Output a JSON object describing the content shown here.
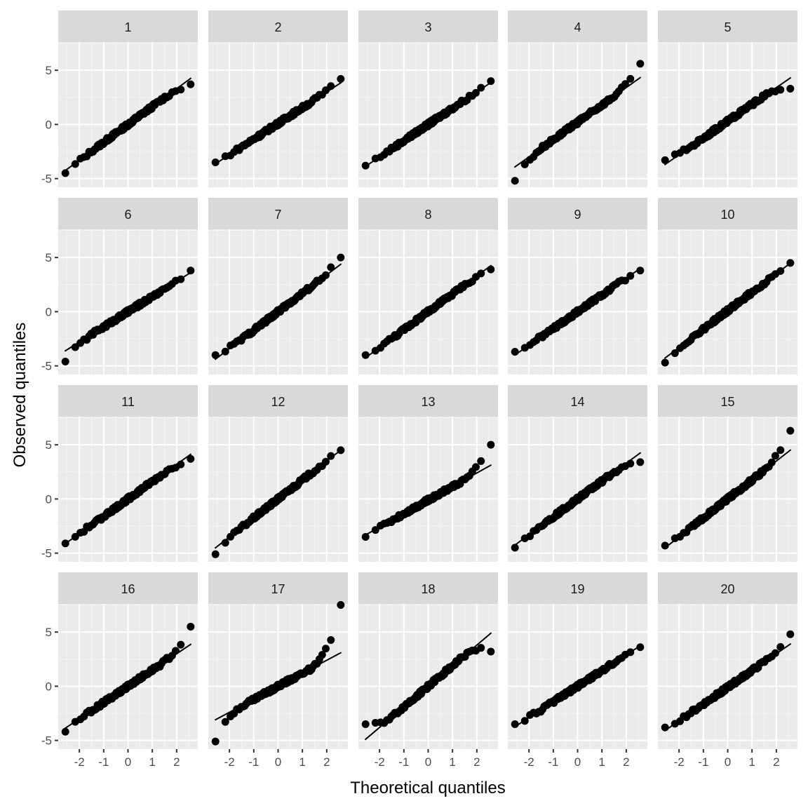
{
  "chart_data": {
    "type": "scatter",
    "subtype": "qq-plot facet grid",
    "xlabel": "Theoretical quantiles",
    "ylabel": "Observed quantiles",
    "layout": {
      "rows": 4,
      "cols": 5,
      "panel_order": "row-major"
    },
    "xlim": [
      -2.87,
      2.87
    ],
    "ylim": [
      -5.8,
      7.6
    ],
    "x_ticks": [
      -2,
      -1,
      0,
      1,
      2
    ],
    "x_tick_labels": [
      "-2",
      "-1",
      "0",
      "1",
      "2"
    ],
    "y_ticks": [
      -5,
      0,
      5
    ],
    "y_tick_labels": [
      "-5",
      "0",
      "5"
    ],
    "grid": true,
    "n_points_per_panel": 100,
    "reference_line": "qq line through quartiles",
    "panels": [
      {
        "label": "1",
        "line": {
          "slope": 1.65,
          "intercept": 0.0
        },
        "first_point": [
          -2.58,
          -4.5
        ],
        "last_point": [
          2.58,
          3.7
        ],
        "notes": "close fit, slight low upper tail"
      },
      {
        "label": "2",
        "line": {
          "slope": 1.45,
          "intercept": 0.1
        },
        "first_point": [
          -2.58,
          -3.5
        ],
        "last_point": [
          2.58,
          4.2
        ],
        "notes": "close fit"
      },
      {
        "label": "3",
        "line": {
          "slope": 1.5,
          "intercept": 0.0
        },
        "first_point": [
          -2.58,
          -3.8
        ],
        "last_point": [
          2.58,
          4.0
        ],
        "notes": "close fit"
      },
      {
        "label": "4",
        "line": {
          "slope": 1.6,
          "intercept": 0.2
        },
        "first_point": [
          -2.58,
          -5.2
        ],
        "last_point": [
          2.58,
          5.6
        ],
        "notes": "heavy tails both ends"
      },
      {
        "label": "5",
        "line": {
          "slope": 1.55,
          "intercept": 0.3
        },
        "first_point": [
          -2.58,
          -3.3
        ],
        "last_point": [
          2.58,
          3.3
        ],
        "notes": "light tails"
      },
      {
        "label": "6",
        "line": {
          "slope": 1.4,
          "intercept": 0.0
        },
        "first_point": [
          -2.58,
          -4.6
        ],
        "last_point": [
          2.58,
          3.8
        ],
        "notes": "low outlier lower tail"
      },
      {
        "label": "7",
        "line": {
          "slope": 1.7,
          "intercept": 0.0
        },
        "first_point": [
          -2.58,
          -4.0
        ],
        "last_point": [
          2.58,
          5.0
        ],
        "notes": "high outlier upper tail"
      },
      {
        "label": "8",
        "line": {
          "slope": 1.65,
          "intercept": 0.0
        },
        "first_point": [
          -2.58,
          -4.0
        ],
        "last_point": [
          2.58,
          3.9
        ],
        "notes": "light upper tail"
      },
      {
        "label": "9",
        "line": {
          "slope": 1.55,
          "intercept": 0.0
        },
        "first_point": [
          -2.58,
          -3.7
        ],
        "last_point": [
          2.58,
          3.8
        ],
        "notes": "close fit"
      },
      {
        "label": "10",
        "line": {
          "slope": 1.7,
          "intercept": 0.1
        },
        "first_point": [
          -2.58,
          -4.7
        ],
        "last_point": [
          2.58,
          4.5
        ],
        "notes": "close fit"
      },
      {
        "label": "11",
        "line": {
          "slope": 1.6,
          "intercept": 0.0
        },
        "first_point": [
          -2.58,
          -4.1
        ],
        "last_point": [
          2.58,
          3.7
        ],
        "notes": "close fit"
      },
      {
        "label": "12",
        "line": {
          "slope": 1.75,
          "intercept": 0.0
        },
        "first_point": [
          -2.58,
          -5.1
        ],
        "last_point": [
          2.58,
          4.5
        ],
        "notes": "close fit"
      },
      {
        "label": "13",
        "line": {
          "slope": 1.25,
          "intercept": -0.1
        },
        "first_point": [
          -2.58,
          -3.5
        ],
        "last_point": [
          2.58,
          5.0
        ],
        "notes": "heavy upper tail"
      },
      {
        "label": "14",
        "line": {
          "slope": 1.65,
          "intercept": 0.0
        },
        "first_point": [
          -2.58,
          -4.5
        ],
        "last_point": [
          2.58,
          3.4
        ],
        "notes": "close fit"
      },
      {
        "label": "15",
        "line": {
          "slope": 1.75,
          "intercept": 0.0
        },
        "first_point": [
          -2.58,
          -4.3
        ],
        "last_point": [
          2.58,
          6.3
        ],
        "notes": "heavy upper tail"
      },
      {
        "label": "16",
        "line": {
          "slope": 1.5,
          "intercept": 0.0
        },
        "first_point": [
          -2.58,
          -4.2
        ],
        "last_point": [
          2.58,
          5.5
        ],
        "notes": "high outlier upper tail"
      },
      {
        "label": "17",
        "line": {
          "slope": 1.2,
          "intercept": 0.0
        },
        "first_point": [
          -2.58,
          -5.1
        ],
        "last_point": [
          2.58,
          7.5
        ],
        "notes": "heavy tails both ends, extreme upper outlier"
      },
      {
        "label": "18",
        "line": {
          "slope": 1.9,
          "intercept": 0.0
        },
        "first_point": [
          -2.58,
          -3.5
        ],
        "last_point": [
          2.58,
          3.2
        ],
        "notes": "light tails, line steeper than data"
      },
      {
        "label": "19",
        "line": {
          "slope": 1.45,
          "intercept": 0.0
        },
        "first_point": [
          -2.58,
          -3.5
        ],
        "last_point": [
          2.58,
          3.6
        ],
        "notes": "S-shaped, light tails"
      },
      {
        "label": "20",
        "line": {
          "slope": 1.55,
          "intercept": -0.1
        },
        "first_point": [
          -2.58,
          -3.8
        ],
        "last_point": [
          2.58,
          4.8
        ],
        "notes": "slight heavy upper tail"
      }
    ]
  },
  "colors": {
    "panel_bg": "#ebebeb",
    "strip_bg": "#d9d9d9",
    "grid_major": "#ffffff",
    "grid_minor": "#f5f5f5",
    "point": "#000000",
    "line": "#000000",
    "tick_text": "#4d4d4d"
  }
}
